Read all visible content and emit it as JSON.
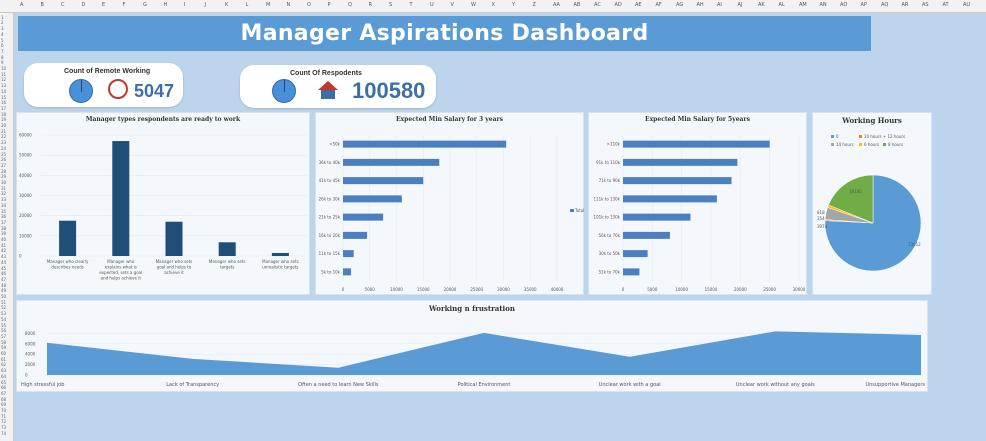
{
  "title": "Manager Aspirations Dashboard",
  "kpis": [
    {
      "label": "Count of Remote Working",
      "value": "5047",
      "icon": "remote-work-icon"
    },
    {
      "label": "Count Of Respodents",
      "value": "100580",
      "icon": "house-icon"
    }
  ],
  "colors": {
    "accent": "#5b9bd5",
    "bar": "#1f4e79",
    "hbar": "#4a7fc1",
    "area": "#5b9bd5"
  },
  "chart_data": [
    {
      "type": "bar",
      "title": "Manager types respondents are ready to work",
      "categories": [
        "Manager who clearly describes needs",
        "Manager who explains what is expected, sets a goal and helps achieve it",
        "Manager who sets goal and helps to achieve it",
        "Manager who sets targets",
        "Manager who sets unrealistic targets"
      ],
      "category_lines": [
        [
          "Manager who clearly",
          "describes needs"
        ],
        [
          "Manager who",
          "explains what is",
          "expected, sets a goal",
          "and helps achieve it"
        ],
        [
          "Manager who sets",
          "goal and helps to",
          "achieve it"
        ],
        [
          "Manager who sets",
          "targets"
        ],
        [
          "Manager who sets",
          "unrealistic targets"
        ]
      ],
      "values": [
        17500,
        57000,
        17000,
        6800,
        1500
      ],
      "ylim": [
        0,
        60000
      ],
      "yticks": [
        "60000",
        "50000",
        "40000",
        "30000",
        "20000",
        "10000",
        "0"
      ]
    },
    {
      "type": "bar",
      "orientation": "horizontal",
      "title": "Expected Min Salary for 3 years",
      "categories": [
        ">50k",
        "36k to 40k",
        "41k to 45k",
        "26k to 30k",
        "21k to 25k",
        "16k to 20k",
        "11k to 15k",
        "5k to 10k"
      ],
      "values": [
        30500,
        18000,
        15000,
        11000,
        7500,
        4500,
        2000,
        1500
      ],
      "xlim": [
        0,
        40000
      ],
      "xticks": [
        "0",
        "5000",
        "10000",
        "15000",
        "20000",
        "25000",
        "30000",
        "35000",
        "40000"
      ],
      "legend": "Total"
    },
    {
      "type": "bar",
      "orientation": "horizontal",
      "title": "Expected Min Salary for 5years",
      "categories": [
        ">110k",
        "91k to 110k",
        "71k to 90k",
        "111k to 130k",
        "101k to 130k",
        "56k to 70k",
        "30k to 50k",
        "51k to 70k"
      ],
      "values": [
        25000,
        19500,
        18500,
        16000,
        11500,
        8000,
        4200,
        2800
      ],
      "xlim": [
        0,
        30000
      ],
      "xticks": [
        "0",
        "5000",
        "10000",
        "15000",
        "20000",
        "25000",
        "30000"
      ]
    },
    {
      "type": "pie",
      "title": "Working Hours",
      "legend": [
        "0",
        "10 hours + 12 hours",
        "14 hours",
        "6 hours",
        "8 hours"
      ],
      "labels": [
        "73012",
        "354",
        "3974",
        "818",
        "18180"
      ],
      "values": [
        73012,
        354,
        3974,
        818,
        18180
      ],
      "colors": [
        "#5b9bd5",
        "#ed7d31",
        "#a5a5a5",
        "#ffc000",
        "#70ad47"
      ]
    },
    {
      "type": "area",
      "title": "Working n frustration",
      "categories": [
        "High stressful job",
        "Lack of Transparency",
        "Often a need to learn New Skills",
        "Political Environment",
        "Unclear work with a goal",
        "Unclear work without any goals",
        "Unsupportive Managers"
      ],
      "values": [
        6200,
        3100,
        1400,
        8100,
        3500,
        8400,
        7700
      ],
      "ylim": [
        0,
        10000
      ],
      "yticks": [
        "8000",
        "6000",
        "4000",
        "2000",
        "0"
      ]
    }
  ]
}
